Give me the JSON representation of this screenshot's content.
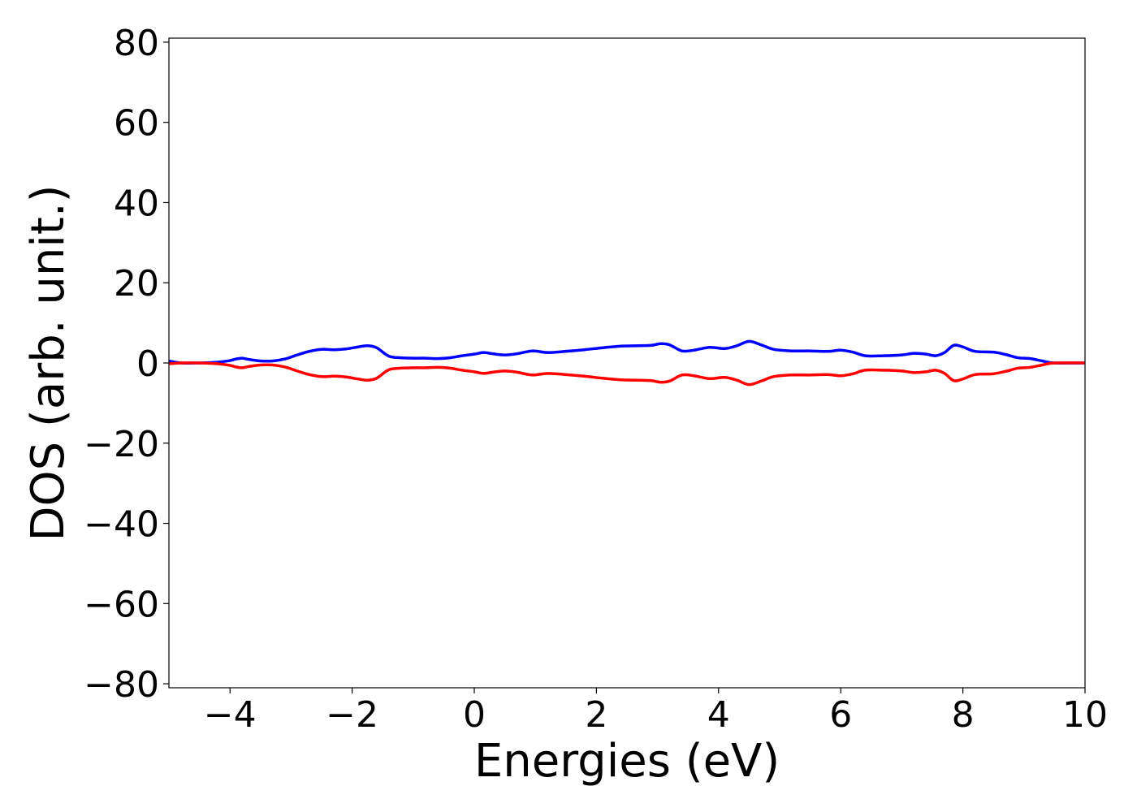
{
  "chart_data": {
    "type": "line",
    "title": "",
    "xlabel": "Energies (eV)",
    "ylabel": "DOS (arb. unit.)",
    "xlim": [
      -5,
      10
    ],
    "ylim": [
      -81,
      81
    ],
    "xticks": [
      -4,
      -2,
      0,
      2,
      4,
      6,
      8,
      10
    ],
    "xtick_labels": [
      "−4",
      "−2",
      "0",
      "2",
      "4",
      "6",
      "8",
      "10"
    ],
    "yticks": [
      -80,
      -60,
      -40,
      -20,
      0,
      20,
      40,
      60,
      80
    ],
    "ytick_labels": [
      "−80",
      "−60",
      "−40",
      "−20",
      "0",
      "20",
      "40",
      "60",
      "80"
    ],
    "grid": false,
    "legend": "none",
    "x": [
      -5.0,
      -4.8,
      -4.5,
      -4.2,
      -4.0,
      -3.9,
      -3.8,
      -3.7,
      -3.5,
      -3.3,
      -3.1,
      -2.9,
      -2.7,
      -2.5,
      -2.3,
      -2.1,
      -1.9,
      -1.75,
      -1.6,
      -1.4,
      -1.2,
      -1.0,
      -0.8,
      -0.6,
      -0.4,
      -0.2,
      0.0,
      0.15,
      0.3,
      0.5,
      0.7,
      0.95,
      1.2,
      1.5,
      1.8,
      2.1,
      2.4,
      2.7,
      2.9,
      3.05,
      3.2,
      3.4,
      3.6,
      3.85,
      4.1,
      4.3,
      4.5,
      4.7,
      4.9,
      5.2,
      5.5,
      5.8,
      6.0,
      6.2,
      6.4,
      6.7,
      7.0,
      7.2,
      7.4,
      7.55,
      7.7,
      7.85,
      8.0,
      8.2,
      8.5,
      8.7,
      8.9,
      9.1,
      9.3,
      9.5,
      10.0
    ],
    "series": [
      {
        "color": "#0000ff",
        "values": [
          0.5,
          0,
          0,
          0.2,
          0.6,
          1.0,
          1.2,
          0.9,
          0.5,
          0.5,
          1.0,
          2.0,
          2.9,
          3.4,
          3.3,
          3.5,
          4.0,
          4.3,
          3.8,
          1.7,
          1.3,
          1.2,
          1.2,
          1.1,
          1.3,
          1.8,
          2.2,
          2.6,
          2.3,
          2.0,
          2.3,
          3.0,
          2.6,
          2.9,
          3.3,
          3.8,
          4.2,
          4.3,
          4.4,
          4.8,
          4.5,
          3.0,
          3.2,
          3.9,
          3.6,
          4.3,
          5.4,
          4.5,
          3.4,
          3.0,
          3.0,
          2.9,
          3.2,
          2.7,
          1.8,
          1.8,
          2.0,
          2.4,
          2.2,
          1.8,
          2.6,
          4.4,
          4.0,
          2.9,
          2.7,
          2.1,
          1.3,
          1.1,
          0.5,
          0.0,
          0.0
        ]
      },
      {
        "color": "#ff0000",
        "values": [
          -0.2,
          0,
          0,
          -0.2,
          -0.6,
          -1.0,
          -1.2,
          -0.9,
          -0.5,
          -0.5,
          -1.0,
          -2.0,
          -2.9,
          -3.4,
          -3.3,
          -3.5,
          -4.0,
          -4.3,
          -3.8,
          -1.7,
          -1.3,
          -1.2,
          -1.2,
          -1.1,
          -1.3,
          -1.8,
          -2.2,
          -2.6,
          -2.3,
          -2.0,
          -2.3,
          -3.0,
          -2.6,
          -2.9,
          -3.3,
          -3.8,
          -4.2,
          -4.3,
          -4.4,
          -4.8,
          -4.5,
          -3.0,
          -3.2,
          -3.9,
          -3.6,
          -4.3,
          -5.4,
          -4.5,
          -3.4,
          -3.0,
          -3.0,
          -2.9,
          -3.2,
          -2.7,
          -1.8,
          -1.8,
          -2.0,
          -2.4,
          -2.2,
          -1.8,
          -2.6,
          -4.4,
          -4.0,
          -2.9,
          -2.7,
          -2.1,
          -1.3,
          -1.1,
          -0.5,
          0.0,
          0.0
        ]
      }
    ]
  }
}
